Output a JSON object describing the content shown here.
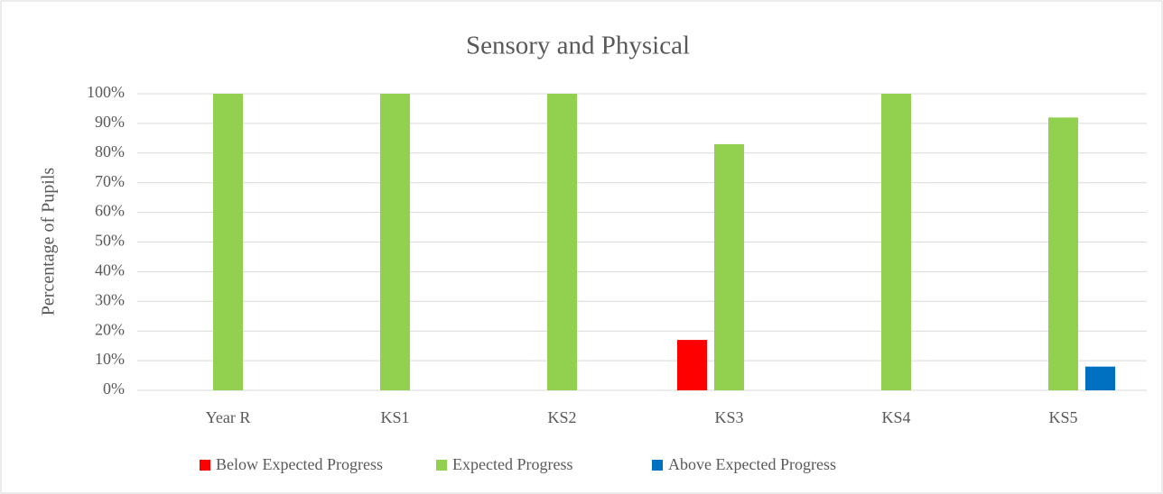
{
  "chart_data": {
    "type": "bar",
    "title": "Sensory and Physical",
    "y_label": "Percentage of Pupils",
    "categories": [
      "Year R",
      "KS1",
      "KS2",
      "KS3",
      "KS4",
      "KS5"
    ],
    "series": [
      {
        "name": "Below Expected Progress",
        "color": "#ff0000",
        "values": [
          0,
          0,
          0,
          17,
          0,
          0
        ]
      },
      {
        "name": "Expected Progress",
        "color": "#92d050",
        "values": [
          100,
          100,
          100,
          83,
          100,
          92
        ]
      },
      {
        "name": "Above Expected Progress",
        "color": "#0070c0",
        "values": [
          0,
          0,
          0,
          0,
          0,
          8
        ]
      }
    ],
    "ylim": [
      0,
      100
    ],
    "yticks": [
      {
        "value": 0,
        "label": "0%"
      },
      {
        "value": 10,
        "label": "10%"
      },
      {
        "value": 20,
        "label": "20%"
      },
      {
        "value": 30,
        "label": "30%"
      },
      {
        "value": 40,
        "label": "40%"
      },
      {
        "value": 50,
        "label": "50%"
      },
      {
        "value": 60,
        "label": "60%"
      },
      {
        "value": 70,
        "label": "70%"
      },
      {
        "value": 80,
        "label": "80%"
      },
      {
        "value": 90,
        "label": "90%"
      },
      {
        "value": 100,
        "label": "100%"
      }
    ],
    "grid": true,
    "legend": "bottom"
  }
}
